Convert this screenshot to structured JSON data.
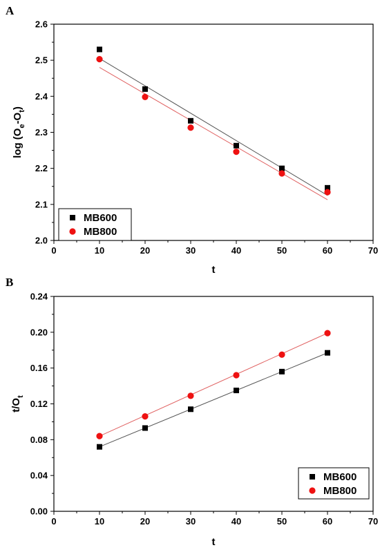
{
  "chart_data": [
    {
      "panel_label": "A",
      "type": "scatter",
      "xlabel": "t",
      "ylabel_main": "log (O",
      "ylabel_sub1": "e",
      "ylabel_mid": "-O",
      "ylabel_sub2": "t",
      "ylabel_end": ")",
      "xlim": [
        0,
        70
      ],
      "ylim": [
        2.0,
        2.6
      ],
      "x_ticks": [
        0,
        10,
        20,
        30,
        40,
        50,
        60,
        70
      ],
      "x_tick_labels": [
        "0",
        "10",
        "20",
        "30",
        "40",
        "50",
        "60",
        "70"
      ],
      "y_ticks": [
        2.0,
        2.1,
        2.2,
        2.3,
        2.4,
        2.5,
        2.6
      ],
      "y_tick_labels": [
        "2.0",
        "2.1",
        "2.2",
        "2.3",
        "2.4",
        "2.5",
        "2.6"
      ],
      "legend_placement": "bottom-left",
      "grid": false,
      "series": [
        {
          "name": "MB600",
          "marker": "square",
          "color": "#000000",
          "line_color": "#555555",
          "x": [
            10,
            20,
            30,
            40,
            50,
            60
          ],
          "y": [
            2.53,
            2.42,
            2.332,
            2.263,
            2.2,
            2.146
          ],
          "fit": [
            [
              10,
              2.505
            ],
            [
              60,
              2.125
            ]
          ]
        },
        {
          "name": "MB800",
          "marker": "circle",
          "color": "#ee1111",
          "line_color": "#e06060",
          "x": [
            10,
            20,
            30,
            40,
            50,
            60
          ],
          "y": [
            2.503,
            2.398,
            2.313,
            2.246,
            2.186,
            2.134
          ],
          "fit": [
            [
              10,
              2.48
            ],
            [
              60,
              2.113
            ]
          ]
        }
      ]
    },
    {
      "panel_label": "B",
      "type": "scatter",
      "xlabel": "t",
      "ylabel_main": "t/O",
      "ylabel_sub1": "t",
      "ylabel_mid": "",
      "ylabel_sub2": "",
      "ylabel_end": "",
      "xlim": [
        0,
        70
      ],
      "ylim": [
        0.0,
        0.24
      ],
      "x_ticks": [
        0,
        10,
        20,
        30,
        40,
        50,
        60,
        70
      ],
      "x_tick_labels": [
        "0",
        "10",
        "20",
        "30",
        "40",
        "50",
        "60",
        "70"
      ],
      "y_ticks": [
        0.0,
        0.04,
        0.08,
        0.12,
        0.16,
        0.2,
        0.24
      ],
      "y_tick_labels": [
        "0.00",
        "0.04",
        "0.08",
        "0.12",
        "0.16",
        "0.20",
        "0.24"
      ],
      "legend_placement": "bottom-right",
      "grid": false,
      "series": [
        {
          "name": "MB600",
          "marker": "square",
          "color": "#000000",
          "line_color": "#555555",
          "x": [
            10,
            20,
            30,
            40,
            50,
            60
          ],
          "y": [
            0.072,
            0.093,
            0.114,
            0.135,
            0.156,
            0.177
          ],
          "fit": [
            [
              10,
              0.072
            ],
            [
              60,
              0.177
            ]
          ]
        },
        {
          "name": "MB800",
          "marker": "circle",
          "color": "#ee1111",
          "line_color": "#e06060",
          "x": [
            10,
            20,
            30,
            40,
            50,
            60
          ],
          "y": [
            0.084,
            0.106,
            0.129,
            0.152,
            0.175,
            0.199
          ],
          "fit": [
            [
              10,
              0.084
            ],
            [
              60,
              0.199
            ]
          ]
        }
      ]
    }
  ]
}
